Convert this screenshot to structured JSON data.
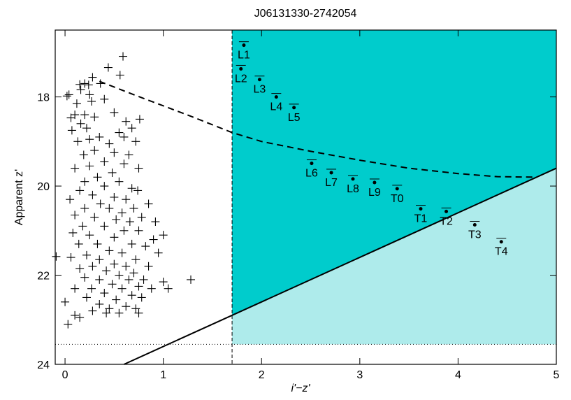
{
  "chart_data": {
    "type": "scatter",
    "title": "J06131330-2742054",
    "x_label": "i'−z'",
    "y_label": "Apparent z'",
    "xlim": [
      -0.1,
      5
    ],
    "ylim": [
      24,
      16.5
    ],
    "xticks": [
      0,
      1,
      2,
      3,
      4,
      5
    ],
    "yticks": [
      18,
      20,
      22,
      24
    ],
    "colors": {
      "region": "#00cccc",
      "region_faint": "#aeebeb"
    },
    "cut_x": 1.7,
    "limit_y": 23.55,
    "solid_line": {
      "x": [
        0.6,
        5
      ],
      "y": [
        24,
        19.6
      ]
    },
    "dashed_curve": {
      "x": [
        0.35,
        0.7,
        1.0,
        1.3,
        1.7,
        2.0,
        2.5,
        3.0,
        3.5,
        4.0,
        4.4,
        4.8
      ],
      "y": [
        17.65,
        17.95,
        18.2,
        18.45,
        18.8,
        19.0,
        19.22,
        19.42,
        19.6,
        19.72,
        19.79,
        19.8
      ]
    },
    "standards": {
      "labels": [
        "L1",
        "L2",
        "L3",
        "L4",
        "L5",
        "L6",
        "L7",
        "L8",
        "L9",
        "T0",
        "T1",
        "T2",
        "T3",
        "T4"
      ],
      "x": [
        1.82,
        1.79,
        1.98,
        2.15,
        2.33,
        2.51,
        2.71,
        2.93,
        3.15,
        3.38,
        3.62,
        3.88,
        4.17,
        4.44
      ],
      "y": [
        16.84,
        17.37,
        17.61,
        18.0,
        18.24,
        19.49,
        19.7,
        19.84,
        19.92,
        20.06,
        20.51,
        20.57,
        20.87,
        21.25
      ]
    },
    "field_stars": {
      "x": [
        0.59,
        0.44,
        0.56,
        0.28,
        0.2,
        0.15,
        0.24,
        0.36,
        0.04,
        0.02,
        0.16,
        0.25,
        0.12,
        0.27,
        0.4,
        0.1,
        0.06,
        0.2,
        0.3,
        0.5,
        0.62,
        0.16,
        0.22,
        0.07,
        0.55,
        0.6,
        0.76,
        0.68,
        0.35,
        0.25,
        0.13,
        0.45,
        0.72,
        0.3,
        0.19,
        0.5,
        0.65,
        0.4,
        0.25,
        0.6,
        0.1,
        0.48,
        0.75,
        0.33,
        0.2,
        0.55,
        0.4,
        0.68,
        0.74,
        0.15,
        0.28,
        0.5,
        0.62,
        0.05,
        0.36,
        0.2,
        0.45,
        0.58,
        0.7,
        0.85,
        0.1,
        0.3,
        0.52,
        0.66,
        0.78,
        0.92,
        0.18,
        0.4,
        0.6,
        0.75,
        1.0,
        0.08,
        0.25,
        0.5,
        0.9,
        0.33,
        0.14,
        0.68,
        0.82,
        0.45,
        0.58,
        0.22,
        0.95,
        -0.09,
        0.06,
        0.35,
        0.72,
        0.5,
        0.62,
        0.28,
        0.15,
        0.85,
        0.42,
        0.55,
        0.7,
        0.2,
        0.35,
        0.65,
        0.8,
        1.0,
        1.28,
        0.48,
        0.27,
        0.58,
        0.75,
        0.1,
        0.4,
        0.68,
        0.88,
        1.05,
        0.22,
        0.52,
        0.78,
        0.35,
        0.62,
        0.45,
        0.28,
        0.72,
        0.55,
        0.0,
        0.1,
        0.15,
        0.03,
        0.75,
        0.42
      ],
      "y": [
        17.09,
        17.34,
        17.51,
        17.56,
        17.7,
        17.72,
        17.73,
        17.7,
        17.95,
        17.98,
        17.84,
        17.95,
        18.15,
        18.1,
        18.05,
        18.4,
        18.47,
        18.4,
        18.45,
        18.35,
        18.55,
        18.6,
        18.7,
        18.75,
        18.8,
        18.9,
        18.5,
        18.7,
        18.9,
        18.95,
        19.0,
        19.05,
        19.0,
        19.2,
        19.3,
        19.25,
        19.3,
        19.45,
        19.55,
        19.5,
        19.6,
        19.7,
        19.6,
        19.8,
        19.9,
        19.9,
        20.0,
        20.05,
        20.1,
        20.1,
        20.2,
        20.25,
        20.3,
        20.3,
        20.4,
        20.5,
        20.5,
        20.6,
        20.5,
        20.4,
        20.65,
        20.7,
        20.75,
        20.8,
        20.7,
        20.8,
        20.9,
        20.9,
        21.0,
        21.0,
        21.1,
        21.05,
        21.1,
        21.15,
        21.2,
        21.3,
        21.3,
        21.3,
        21.35,
        21.45,
        21.5,
        21.55,
        21.5,
        21.58,
        21.6,
        21.65,
        21.65,
        21.75,
        21.8,
        21.8,
        21.85,
        21.8,
        21.9,
        22.0,
        21.95,
        22.05,
        22.1,
        22.1,
        22.1,
        22.15,
        22.1,
        22.2,
        22.3,
        22.3,
        22.25,
        22.3,
        22.4,
        22.45,
        22.3,
        22.3,
        22.5,
        22.55,
        22.5,
        22.65,
        22.7,
        22.75,
        22.8,
        22.75,
        22.85,
        22.6,
        22.9,
        22.95,
        23.1,
        22.85,
        22.85
      ]
    }
  }
}
